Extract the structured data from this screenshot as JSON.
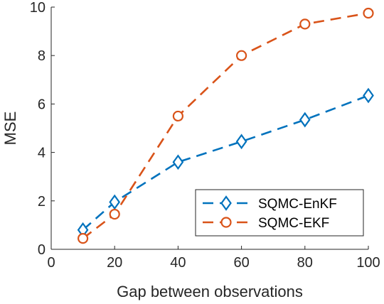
{
  "chart_data": {
    "type": "line",
    "title": "",
    "xlabel": "Gap between observations",
    "ylabel": "MSE",
    "xlim": [
      0,
      100
    ],
    "ylim": [
      0,
      10
    ],
    "xticks": [
      0,
      20,
      40,
      60,
      80,
      100
    ],
    "yticks": [
      0,
      2,
      4,
      6,
      8,
      10
    ],
    "grid": false,
    "legend_position": "bottom-right",
    "x": [
      10,
      20,
      40,
      60,
      80,
      100
    ],
    "series": [
      {
        "name": "SQMC-EnKF",
        "marker": "diamond",
        "line_style": "dashed",
        "color": "#0072BD",
        "values": [
          0.8,
          1.95,
          3.6,
          4.45,
          5.35,
          6.35
        ]
      },
      {
        "name": "SQMC-EKF",
        "marker": "circle",
        "line_style": "dashed",
        "color": "#D95319",
        "values": [
          0.45,
          1.45,
          5.5,
          8.0,
          9.3,
          9.75
        ]
      }
    ]
  }
}
